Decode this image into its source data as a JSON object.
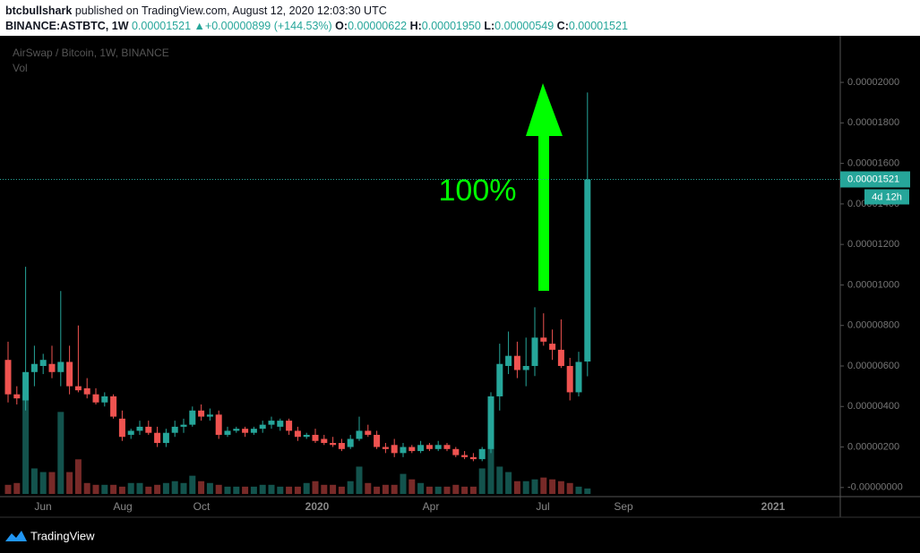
{
  "header": {
    "author": "btcbullshark",
    "published": "published on TradingView.com, August 12, 2020 12:03:30 UTC",
    "symbol": "BINANCE:ASTBTC, 1W",
    "last": "0.00001521",
    "arrow": "▲",
    "change": "+0.00000899 (+144.53%)",
    "o_label": "O:",
    "o": "0.00000622",
    "h_label": "H:",
    "h": "0.00001950",
    "l_label": "L:",
    "l": "0.00000549",
    "c_label": "C:",
    "c": "0.00001521"
  },
  "chart_data": {
    "type": "candlestick",
    "title": "AirSwap / Bitcoin, 1W, BINANCE",
    "volume_label": "Vol",
    "annotation": "100%",
    "price_label": "0.00001521",
    "countdown": "4d 12h",
    "last_price": 1.521e-05,
    "up_color": "#26a69a",
    "down_color": "#ef5350",
    "time_labels": [
      "Jun",
      "Aug",
      "Oct",
      "2020",
      "Apr",
      "Jul",
      "Sep",
      "2021"
    ],
    "ylim": [
      -4.5e-07,
      2.23e-05
    ],
    "yticks": [
      {
        "value": 0,
        "label": "-0.00000000"
      },
      {
        "value": 2e-06,
        "label": "0.00000200"
      },
      {
        "value": 4e-06,
        "label": "0.00000400"
      },
      {
        "value": 6e-06,
        "label": "0.00000600"
      },
      {
        "value": 8e-06,
        "label": "0.00000800"
      },
      {
        "value": 1e-05,
        "label": "0.00001000"
      },
      {
        "value": 1.2e-05,
        "label": "0.00001200"
      },
      {
        "value": 1.4e-05,
        "label": "0.00001400"
      },
      {
        "value": 1.6e-05,
        "label": "0.00001600"
      },
      {
        "value": 1.8e-05,
        "label": "0.00001800"
      },
      {
        "value": 2e-05,
        "label": "0.00002000"
      }
    ],
    "open": [
      6.3e-06,
      4.6e-06,
      4.3e-06,
      5.7e-06,
      6e-06,
      6.1e-06,
      5.7e-06,
      6.2e-06,
      5e-06,
      4.9e-06,
      4.6e-06,
      4.2e-06,
      4.5e-06,
      3.4e-06,
      2.6e-06,
      2.8e-06,
      3e-06,
      2.7e-06,
      2.2e-06,
      2.7e-06,
      3e-06,
      3.1e-06,
      3.8e-06,
      3.5e-06,
      3.6e-06,
      2.6e-06,
      2.8e-06,
      2.9e-06,
      2.7e-06,
      2.9e-06,
      3.1e-06,
      3e-06,
      3.3e-06,
      2.8e-06,
      2.5e-06,
      2.6e-06,
      2.4e-06,
      2.2e-06,
      2.2e-06,
      2e-06,
      2.4e-06,
      2.8e-06,
      2.6e-06,
      2e-06,
      2.1e-06,
      1.7e-06,
      2e-06,
      1.8e-06,
      2.1e-06,
      1.9e-06,
      2.1e-06,
      1.9e-06,
      1.6e-06,
      1.5e-06,
      1.4e-06,
      1.9e-06,
      4.5e-06,
      6e-06,
      6.5e-06,
      5.8e-06,
      6e-06,
      7.4e-06,
      7.1e-06,
      6.8e-06,
      6e-06,
      4.7e-06,
      6.22e-06
    ],
    "high": [
      7.2e-06,
      5e-06,
      1.09e-05,
      7e-06,
      6.6e-06,
      7e-06,
      9.7e-06,
      7e-06,
      8e-06,
      5.4e-06,
      4.9e-06,
      4.7e-06,
      4.6e-06,
      3.8e-06,
      2.9e-06,
      3.3e-06,
      3.3e-06,
      3e-06,
      2.9e-06,
      3.3e-06,
      3.4e-06,
      4e-06,
      4.1e-06,
      3.9e-06,
      3.8e-06,
      3e-06,
      3e-06,
      3e-06,
      3e-06,
      3.3e-06,
      3.5e-06,
      3.4e-06,
      3.4e-06,
      3e-06,
      2.7e-06,
      2.9e-06,
      2.6e-06,
      2.5e-06,
      2.4e-06,
      2.6e-06,
      3.5e-06,
      3.1e-06,
      2.8e-06,
      2.2e-06,
      2.4e-06,
      2.2e-06,
      2.1e-06,
      2.3e-06,
      2.2e-06,
      2.3e-06,
      2.2e-06,
      2e-06,
      1.8e-06,
      1.7e-06,
      2e-06,
      4.7e-06,
      7.1e-06,
      7.7e-06,
      7.2e-06,
      7.4e-06,
      8.9e-06,
      8.6e-06,
      7.8e-06,
      8.3e-06,
      6.4e-06,
      6.7e-06,
      1.95e-05
    ],
    "low": [
      4.2e-06,
      4.1e-06,
      3.8e-06,
      5e-06,
      5.6e-06,
      5.4e-06,
      5e-06,
      4.6e-06,
      4.7e-06,
      4.4e-06,
      4.1e-06,
      4e-06,
      3.4e-06,
      2.3e-06,
      2.4e-06,
      2.6e-06,
      2.6e-06,
      2e-06,
      2e-06,
      2.5e-06,
      2.7e-06,
      3e-06,
      3.3e-06,
      3.3e-06,
      2.4e-06,
      2.5e-06,
      2.7e-06,
      2.5e-06,
      2.6e-06,
      2.7e-06,
      2.9e-06,
      2.8e-06,
      2.6e-06,
      2.3e-06,
      2.4e-06,
      2.2e-06,
      2.1e-06,
      2e-06,
      1.8e-06,
      1.9e-06,
      2.3e-06,
      2.5e-06,
      1.9e-06,
      1.7e-06,
      1.5e-06,
      1.5e-06,
      1.7e-06,
      1.7e-06,
      1.8e-06,
      1.8e-06,
      1.8e-06,
      1.5e-06,
      1.4e-06,
      1.3e-06,
      1.3e-06,
      1.7e-06,
      3.8e-06,
      5.6e-06,
      5.4e-06,
      5e-06,
      5.5e-06,
      7e-06,
      6.3e-06,
      5.9e-06,
      4.3e-06,
      4.5e-06,
      5.49e-06
    ],
    "close": [
      4.6e-06,
      4.4e-06,
      5.7e-06,
      6.1e-06,
      6.3e-06,
      5.7e-06,
      6.2e-06,
      5e-06,
      4.8e-06,
      4.6e-06,
      4.2e-06,
      4.5e-06,
      3.5e-06,
      2.5e-06,
      2.8e-06,
      3e-06,
      2.7e-06,
      2.2e-06,
      2.7e-06,
      3e-06,
      3.1e-06,
      3.8e-06,
      3.5e-06,
      3.6e-06,
      2.6e-06,
      2.8e-06,
      2.9e-06,
      2.7e-06,
      2.9e-06,
      3.1e-06,
      3.3e-06,
      3.3e-06,
      2.8e-06,
      2.5e-06,
      2.6e-06,
      2.3e-06,
      2.2e-06,
      2.1e-06,
      1.9e-06,
      2.4e-06,
      2.8e-06,
      2.6e-06,
      2e-06,
      1.9e-06,
      1.7e-06,
      2e-06,
      1.8e-06,
      2.1e-06,
      1.9e-06,
      2.1e-06,
      1.9e-06,
      1.6e-06,
      1.5e-06,
      1.4e-06,
      1.9e-06,
      4.5e-06,
      6.1e-06,
      6.5e-06,
      5.8e-06,
      6e-06,
      7.4e-06,
      7.2e-06,
      6.8e-06,
      6e-06,
      4.7e-06,
      6.2e-06,
      1.521e-05
    ],
    "volume": [
      10,
      12,
      108,
      28,
      24,
      24,
      90,
      24,
      38,
      12,
      10,
      10,
      10,
      8,
      12,
      12,
      8,
      10,
      12,
      14,
      12,
      20,
      14,
      12,
      10,
      8,
      8,
      8,
      8,
      10,
      10,
      8,
      8,
      8,
      12,
      14,
      10,
      10,
      8,
      14,
      30,
      12,
      8,
      10,
      10,
      22,
      16,
      12,
      8,
      8,
      8,
      10,
      8,
      8,
      28,
      80,
      30,
      24,
      14,
      14,
      16,
      18,
      16,
      14,
      12,
      8,
      6
    ]
  }
}
